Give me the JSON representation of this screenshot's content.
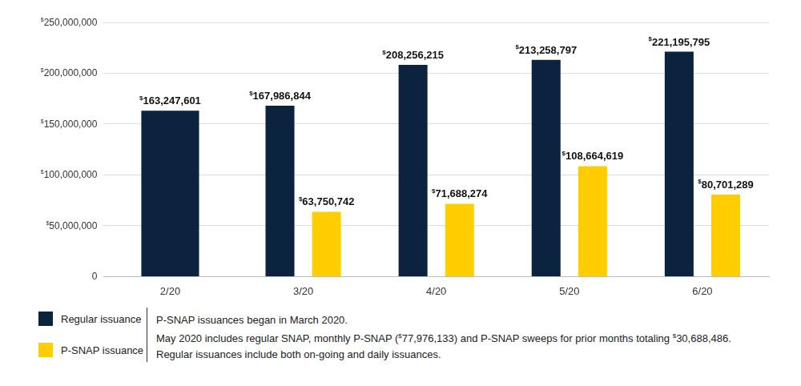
{
  "chart_data": {
    "type": "bar",
    "categories": [
      "2/20",
      "3/20",
      "4/20",
      "5/20",
      "6/20"
    ],
    "series": [
      {
        "name": "Regular issuance",
        "color": "#0c2340",
        "values": [
          163247601,
          167986844,
          208256215,
          213258797,
          221195795
        ],
        "value_labels": [
          "$163,247,601",
          "$167,986,844",
          "$208,256,215",
          "$213,258,797",
          "$221,195,795"
        ]
      },
      {
        "name": "P-SNAP issuance",
        "color": "#ffcd00",
        "values": [
          null,
          63750742,
          71688274,
          108664619,
          80701289
        ],
        "value_labels": [
          null,
          "$63,750,742",
          "$71,688,274",
          "$108,664,619",
          "$80,701,289"
        ]
      }
    ],
    "ylim": [
      0,
      250000000
    ],
    "yticks": [
      0,
      {
        "value": 50000000,
        "label": "$50,000,000"
      },
      {
        "value": 100000000,
        "label": "$100,000,000"
      },
      {
        "value": 150000000,
        "label": "$150,000,000"
      },
      {
        "value": 200000000,
        "label": "$200,000,000"
      },
      {
        "value": 250000000,
        "label": "$250,000,000"
      }
    ],
    "grid": true,
    "data_labels": true,
    "legend": "bottom-left",
    "annotations": [
      "P-SNAP issuances began in March 2020.",
      "May 2020 includes regular SNAP, monthly P-SNAP ($77,976,133) and P-SNAP sweeps for prior months totaling $30,688,486.",
      "Regular issuances include both on-going and daily issuances."
    ]
  }
}
